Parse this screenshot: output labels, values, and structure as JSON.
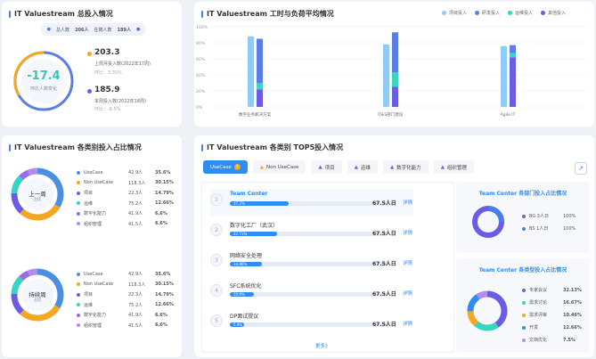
{
  "colors": {
    "accent": "#2f8cf0",
    "orange": "#f5a623",
    "purple": "#6b5ce7",
    "teal": "#36d6c0",
    "lightblue": "#8ecbf5",
    "deeppurple": "#7b5be0"
  },
  "panel1": {
    "title": "IT Valuestream 总投入情况",
    "pill_total_label": "总人数",
    "pill_total_value": "206人",
    "pill_current_label": "在岗人数",
    "pill_current_value": "189人",
    "gauge_value": "-17.4",
    "gauge_caption": "环比人数变化",
    "stat1_value": "203.3",
    "stat1_label": "上周月投入数(2022年17周)",
    "stat1_change": "环比：3.35%",
    "stat2_value": "185.9",
    "stat2_label": "本周投入数(2022年18周)",
    "stat2_change": "环比：-8.5%"
  },
  "panel2": {
    "title": "IT Valuestream 工时与负荷平均情况",
    "legend": [
      "项目投入",
      "研发投入",
      "运维投入",
      "其他投入"
    ],
    "chart_data": {
      "type": "bar",
      "categories": [
        "数字业务解决方案",
        "IT&S部门建设",
        "Agile IT"
      ],
      "y_ticks": [
        "100%",
        "80%",
        "60%",
        "40%",
        "20%",
        "0%"
      ],
      "ylim": [
        0,
        100
      ],
      "series_light": [
        88,
        78,
        76
      ],
      "series_stack": [
        {
          "segments": [
            22,
            8,
            55
          ]
        },
        {
          "segments": [
            25,
            18,
            50
          ]
        },
        {
          "segments": [
            62,
            5,
            10
          ]
        }
      ]
    }
  },
  "panel3": {
    "title": "IT Valuestream 各类别投入占比情况",
    "donut1_label": "上一周",
    "donut1_sub": "占比",
    "donut2_label": "持续周",
    "donut2_sub": "占比",
    "legend": [
      {
        "name": "UseCase",
        "people": "42.9人",
        "pct": "35.6%",
        "color": "#4a90e2"
      },
      {
        "name": "Non UseCase",
        "people": "118.3人",
        "pct": "30.15%",
        "color": "#f5a623"
      },
      {
        "name": "项目",
        "people": "22.3人",
        "pct": "14.79%",
        "color": "#6b5ce7"
      },
      {
        "name": "运维",
        "people": "75.2人",
        "pct": "12.66%",
        "color": "#36d6c0"
      },
      {
        "name": "数字化能力",
        "people": "41.9人",
        "pct": "6.6%",
        "color": "#9b6be8"
      },
      {
        "name": "组织管理",
        "people": "41.5人",
        "pct": "6.6%",
        "color": "#b48cf0"
      }
    ]
  },
  "panel4": {
    "title": "IT Valuestream 各类别 TOP5投入情况",
    "tabs": [
      "UseCase",
      "Non UseCase",
      "项目",
      "运维",
      "数字化能力",
      "组织管理"
    ],
    "rows": [
      {
        "rank": "1",
        "name": "Team Center",
        "pct": "37.2%",
        "fill": 0.37,
        "value": "67.5人日",
        "link": "详情"
      },
      {
        "rank": "2",
        "name": "数字化工厂（武汉）",
        "pct": "22.71%",
        "fill": 0.3,
        "value": "67.5人日",
        "link": "详情"
      },
      {
        "rank": "3",
        "name": "网络安全处理",
        "pct": "14.86%",
        "fill": 0.2,
        "value": "67.5人日",
        "link": "详情"
      },
      {
        "rank": "4",
        "name": "SFC系统优化",
        "pct": "10.9%",
        "fill": 0.15,
        "value": "67.5人日",
        "link": "详情"
      },
      {
        "rank": "5",
        "name": "DP面试提议",
        "pct": "5.9%",
        "fill": 0.09,
        "value": "67.5人日",
        "link": "详情"
      }
    ],
    "more_link": "更多》",
    "right1_title": "Team Center 各部门投入占比情况",
    "right1_legend": [
      {
        "name": "BG 3人日",
        "pct": "100%",
        "color": "#6b5ce7"
      },
      {
        "name": "BS 1人日",
        "pct": "100%",
        "color": "#4a7bf0"
      }
    ],
    "right2_title": "Team Center 各类型投入占比情况",
    "right2_legend": [
      {
        "name": "专家会议",
        "pct": "32.13%",
        "color": "#6b5ce7"
      },
      {
        "name": "需求讨论",
        "pct": "16.67%",
        "color": "#36d6c0"
      },
      {
        "name": "需求评审",
        "pct": "10.46%",
        "color": "#f5a623"
      },
      {
        "name": "开发",
        "pct": "12.66%",
        "color": "#2f8cf0"
      },
      {
        "name": "文档优化",
        "pct": "7.5%",
        "color": "#b48cf0"
      }
    ]
  }
}
